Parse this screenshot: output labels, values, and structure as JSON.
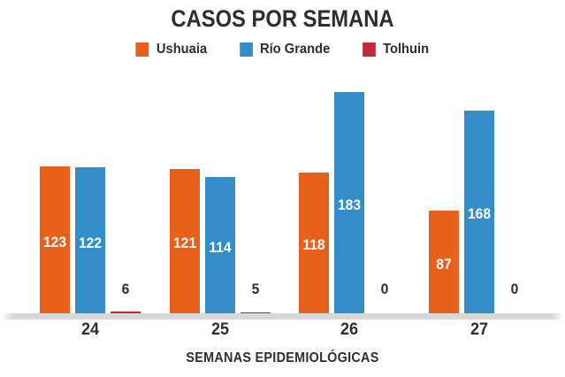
{
  "chart_data": {
    "type": "bar",
    "title": "CASOS POR SEMANA",
    "xlabel": "SEMANAS EPIDEMIOLÓGICAS",
    "ylabel": "",
    "categories": [
      "24",
      "25",
      "26",
      "27"
    ],
    "series": [
      {
        "name": "Ushuaia",
        "color": "#E8611B",
        "values": [
          123,
          121,
          118,
          87
        ]
      },
      {
        "name": "Río Grande",
        "color": "#338DC9",
        "values": [
          122,
          114,
          183,
          168
        ]
      },
      {
        "name": "Tolhuin",
        "color": "#C0293C",
        "values": [
          6,
          5,
          0,
          0
        ]
      }
    ],
    "ylim": [
      0,
      190
    ],
    "grid": false,
    "legend_position": "top",
    "value_labels": true,
    "text_color": "#2e2e2e",
    "axis_line_color": "#d8d8d8",
    "background_color": "#ffffff"
  }
}
